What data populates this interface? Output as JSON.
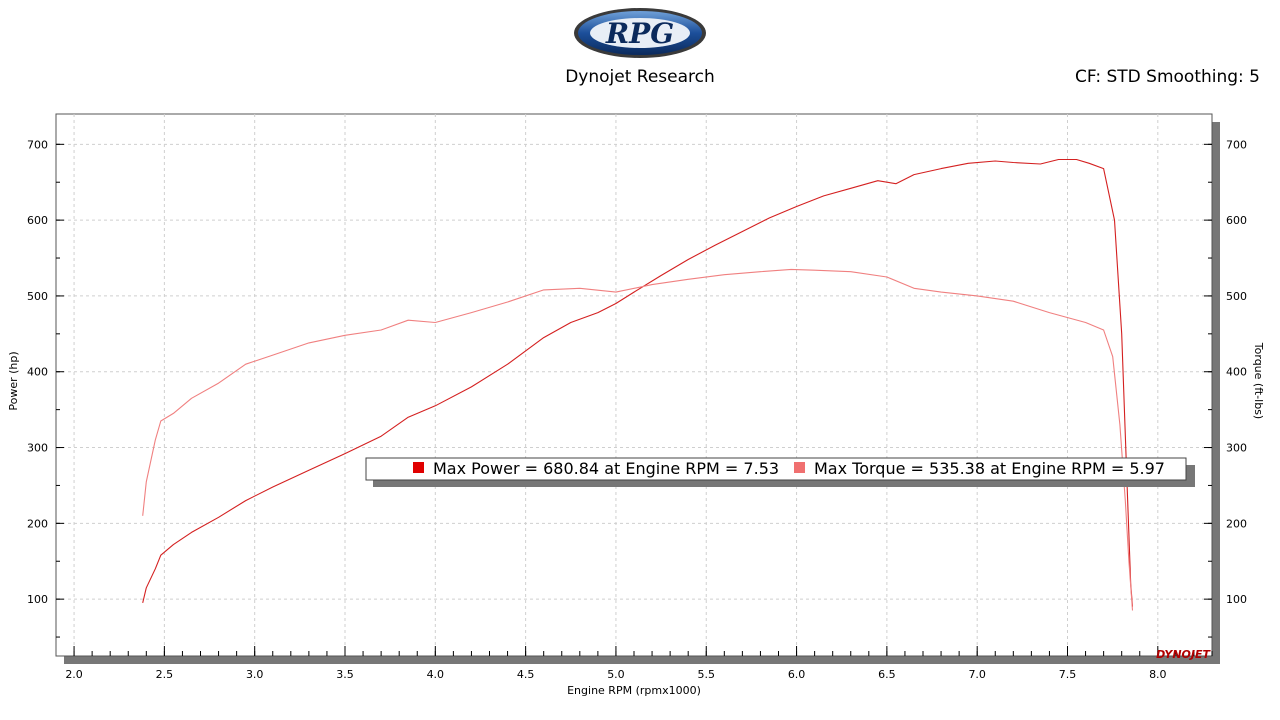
{
  "header": {
    "logo_text": "RPG",
    "subtitle": "Dynojet Research",
    "cf_info": "CF: STD Smoothing: 5"
  },
  "watermark": "DYNOJET",
  "chart_data": {
    "type": "line",
    "xlabel": "Engine RPM (rpmx1000)",
    "ylabel_left": "Power (hp)",
    "ylabel_right": "Torque (ft-lbs)",
    "xlim": [
      1.9,
      8.3
    ],
    "ylim": [
      25,
      740
    ],
    "x_ticks": [
      "2.0",
      "2.5",
      "3.0",
      "3.5",
      "4.0",
      "4.5",
      "5.0",
      "5.5",
      "6.0",
      "6.5",
      "7.0",
      "7.5",
      "8.0"
    ],
    "y_ticks": [
      "100",
      "200",
      "300",
      "400",
      "500",
      "600",
      "700"
    ],
    "grid": true,
    "legend": {
      "placement": "center",
      "items": [
        {
          "label": "Max Power = 680.84 at Engine RPM = 7.53",
          "color": "#e00000"
        },
        {
          "label": "Max Torque = 535.38 at Engine RPM = 5.97",
          "color": "#f07070"
        }
      ]
    },
    "series": [
      {
        "color": "#d42020",
        "x": [
          2.38,
          2.4,
          2.45,
          2.48,
          2.55,
          2.65,
          2.8,
          2.95,
          3.1,
          3.3,
          3.5,
          3.7,
          3.85,
          4.0,
          4.2,
          4.4,
          4.6,
          4.75,
          4.9,
          5.0,
          5.1,
          5.25,
          5.4,
          5.55,
          5.7,
          5.85,
          6.0,
          6.15,
          6.3,
          6.45,
          6.55,
          6.65,
          6.8,
          6.95,
          7.1,
          7.2,
          7.35,
          7.45,
          7.55,
          7.62,
          7.7,
          7.76,
          7.8,
          7.83,
          7.85,
          7.86
        ],
        "y": [
          95,
          115,
          140,
          158,
          172,
          188,
          208,
          230,
          248,
          270,
          292,
          315,
          340,
          355,
          380,
          410,
          445,
          465,
          478,
          490,
          505,
          527,
          548,
          567,
          585,
          603,
          618,
          632,
          642,
          652,
          648,
          660,
          668,
          675,
          678,
          676,
          674,
          680,
          680,
          675,
          668,
          600,
          450,
          250,
          120,
          90
        ]
      },
      {
        "color": "#f08080",
        "x": [
          2.38,
          2.4,
          2.45,
          2.48,
          2.55,
          2.65,
          2.8,
          2.95,
          3.1,
          3.3,
          3.5,
          3.7,
          3.85,
          4.0,
          4.2,
          4.4,
          4.6,
          4.8,
          5.0,
          5.2,
          5.4,
          5.6,
          5.8,
          5.97,
          6.1,
          6.3,
          6.5,
          6.65,
          6.8,
          7.0,
          7.2,
          7.4,
          7.6,
          7.7,
          7.75,
          7.79,
          7.82,
          7.84,
          7.86
        ],
        "y": [
          210,
          255,
          310,
          335,
          345,
          365,
          385,
          410,
          422,
          438,
          448,
          455,
          468,
          465,
          478,
          492,
          508,
          510,
          505,
          515,
          522,
          528,
          532,
          535,
          534,
          532,
          525,
          510,
          505,
          500,
          493,
          478,
          465,
          455,
          420,
          330,
          230,
          150,
          85
        ]
      }
    ]
  }
}
